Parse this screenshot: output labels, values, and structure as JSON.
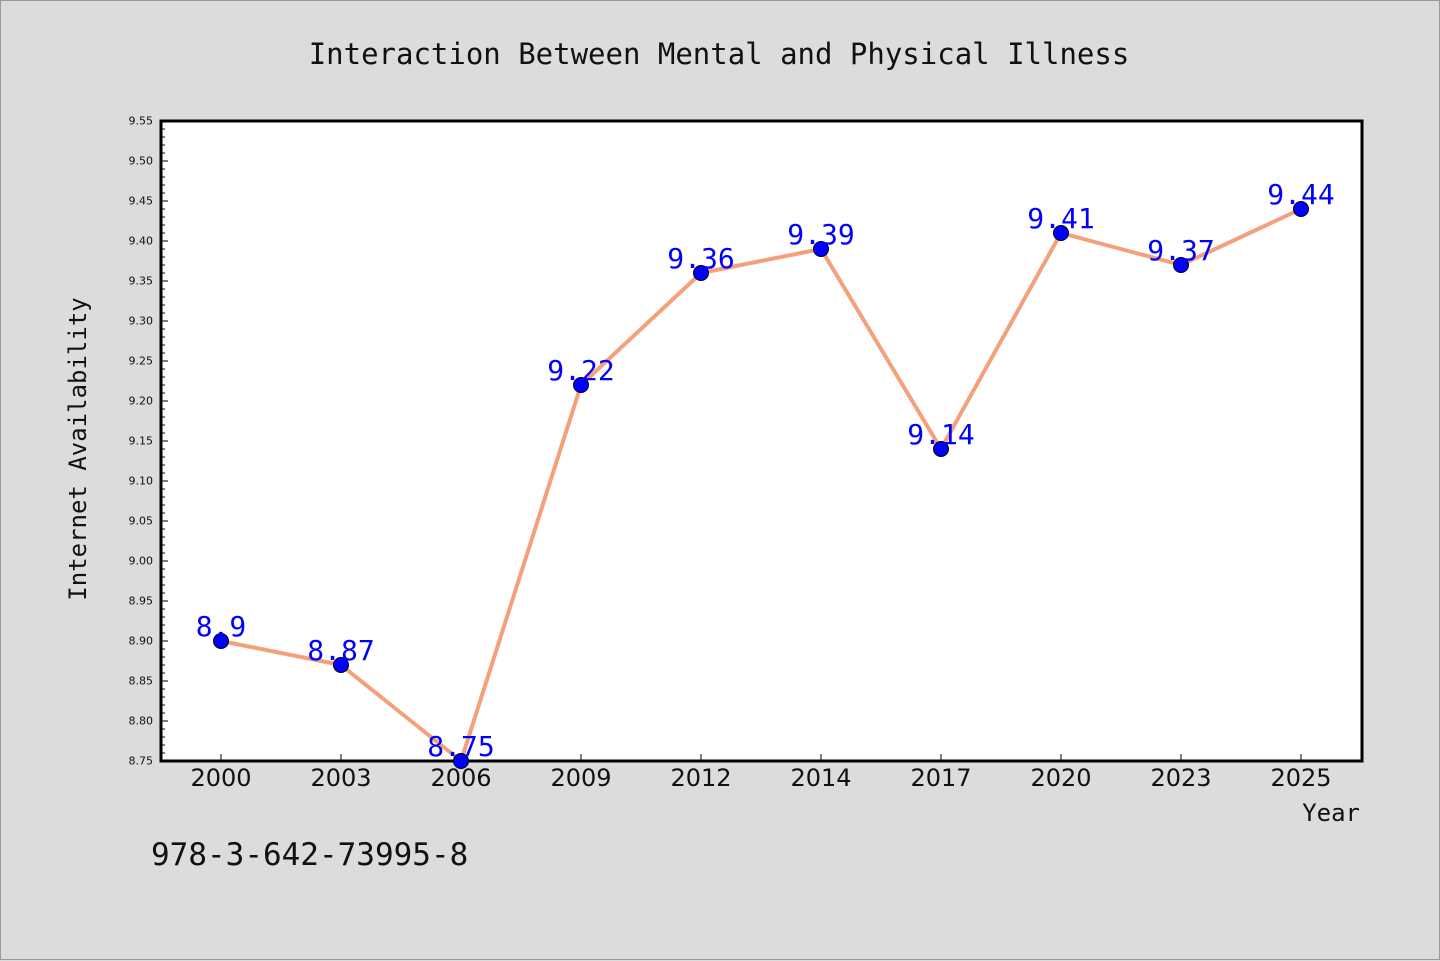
{
  "chart_data": {
    "type": "line",
    "title": "Interaction Between Mental and Physical Illness",
    "xlabel": "Year",
    "ylabel": "Internet Availability",
    "categories": [
      "2000",
      "2003",
      "2006",
      "2009",
      "2012",
      "2014",
      "2017",
      "2020",
      "2023",
      "2025"
    ],
    "values": [
      8.9,
      8.87,
      8.75,
      9.22,
      9.36,
      9.39,
      9.14,
      9.41,
      9.37,
      9.44
    ],
    "data_labels": [
      "8.9",
      "8.87",
      "8.75",
      "9.22",
      "9.36",
      "9.39",
      "9.14",
      "9.41",
      "9.37",
      "9.44"
    ],
    "ylim": [
      8.75,
      9.55
    ],
    "yticks": [
      "8.75",
      "8.80",
      "8.85",
      "8.90",
      "8.95",
      "9.00",
      "9.05",
      "9.10",
      "9.15",
      "9.20",
      "9.25",
      "9.30",
      "9.35",
      "9.40",
      "9.45",
      "9.50",
      "9.55"
    ],
    "grid": false,
    "legend": "none",
    "colors": {
      "line": "#f4a07c",
      "marker": "#0000ff",
      "label": "#0000ff",
      "background": "#dcdcdc",
      "plot_area": "#ffffff"
    }
  },
  "footer_text": "978-3-642-73995-8"
}
